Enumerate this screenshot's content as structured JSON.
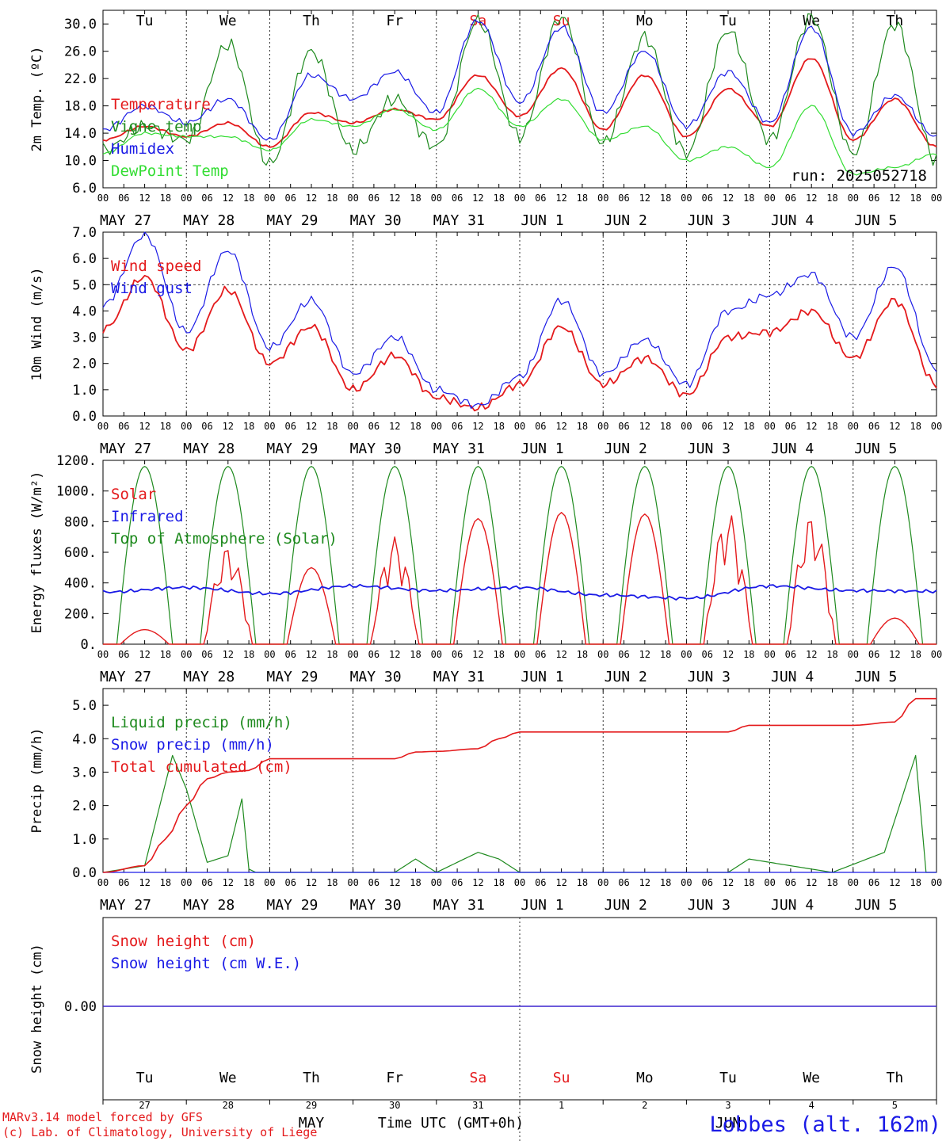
{
  "colors": {
    "red": "#e41a1c",
    "green": "#1e8a1e",
    "blue": "#1a1ae6",
    "lightgreen": "#33dd33",
    "axis": "#000000"
  },
  "day_labels": [
    "Tu",
    "We",
    "Th",
    "Fr",
    "Sa",
    "Su",
    "Mo",
    "Tu",
    "We",
    "Th"
  ],
  "weekend_day_indices": [
    4,
    5
  ],
  "date_labels": [
    "MAY 27",
    "MAY 28",
    "MAY 29",
    "MAY 30",
    "MAY 31",
    "JUN  1",
    "JUN  2",
    "JUN  3",
    "JUN  4",
    "JUN  5"
  ],
  "hour_labels": [
    "00",
    "06",
    "12",
    "18"
  ],
  "bottom_axis": {
    "day_numbers": [
      "27",
      "28",
      "29",
      "30",
      "31",
      "1",
      "2",
      "3",
      "4",
      "5"
    ],
    "month_may": "MAY",
    "month_jun": "JUN",
    "xlabel": "Time UTC (GMT+0h)"
  },
  "footer": {
    "model_line": "MARv3.14 model forced by GFS",
    "lab_line": "(c) Lab. of Climatology, University of Liege",
    "station": "Lobbes (alt. 162m)"
  },
  "chart_data": [
    {
      "id": "temperature",
      "type": "line",
      "ylabel": "2m Temp. (ºC)",
      "ylim": [
        6,
        32
      ],
      "yticks": [
        6,
        10,
        14,
        18,
        22,
        26,
        30
      ],
      "ytick_labels": [
        "6.0",
        "10.0",
        "14.0",
        "18.0",
        "22.0",
        "26.0",
        "30.0"
      ],
      "x_hours": [
        0,
        12,
        24,
        36,
        48,
        60,
        72,
        84,
        96,
        108,
        120,
        132,
        144,
        156,
        168,
        180,
        192,
        204,
        216,
        228,
        240
      ],
      "annotation": "run: 2025052718",
      "series": [
        {
          "name": "Temperature",
          "color": "red",
          "values": [
            13,
            15,
            13.5,
            15.5,
            12,
            17,
            15.5,
            17.5,
            16,
            22.5,
            16.5,
            23.5,
            14.5,
            22.5,
            13.5,
            20.5,
            15,
            25,
            13,
            19,
            12
          ]
        },
        {
          "name": "Vigne temp",
          "color": "green",
          "values": [
            11.5,
            15,
            13,
            27,
            9.5,
            26,
            11.5,
            19,
            12,
            30.5,
            13.5,
            31,
            12.5,
            28,
            11,
            29,
            13,
            31,
            11,
            30,
            10
          ]
        },
        {
          "name": "Humidex",
          "color": "blue",
          "values": [
            14.5,
            18,
            15.5,
            19,
            13,
            22.5,
            19,
            23,
            17,
            30.5,
            18.5,
            29.5,
            17,
            26,
            15,
            23,
            15.5,
            29.5,
            14,
            19.5,
            13.5
          ]
        },
        {
          "name": "DewPoint Temp",
          "color": "lightgreen",
          "values": [
            11,
            14,
            13.5,
            13.5,
            11.5,
            16,
            15,
            17.5,
            14.5,
            20.5,
            15,
            19,
            13,
            15,
            10,
            12,
            9,
            18,
            8,
            9,
            11
          ]
        }
      ]
    },
    {
      "id": "wind",
      "type": "line",
      "ylabel": "10m Wind (m/s)",
      "ylim": [
        0,
        7
      ],
      "yticks": [
        0,
        1,
        2,
        3,
        4,
        5,
        6,
        7
      ],
      "ytick_labels": [
        "0.0",
        "1.0",
        "2.0",
        "3.0",
        "4.0",
        "5.0",
        "6.0",
        "7.0"
      ],
      "hline": 5,
      "x_hours": [
        0,
        12,
        24,
        36,
        48,
        60,
        72,
        84,
        96,
        108,
        120,
        132,
        144,
        156,
        168,
        180,
        192,
        204,
        216,
        228,
        240
      ],
      "series": [
        {
          "name": "Wind speed",
          "color": "red",
          "values": [
            3.3,
            5.3,
            2.5,
            4.8,
            2,
            3.4,
            1,
            2.3,
            0.7,
            0.3,
            1.2,
            3.4,
            1.2,
            2.2,
            0.8,
            3,
            3.2,
            4,
            2.2,
            4.4,
            1.2
          ]
        },
        {
          "name": "Wind gust",
          "color": "blue",
          "values": [
            4.2,
            6.9,
            3.2,
            6.3,
            2.6,
            4.4,
            1.6,
            3,
            1,
            0.4,
            1.5,
            4.4,
            1.6,
            2.9,
            1.2,
            4,
            4.6,
            5.4,
            3,
            5.7,
            1.8
          ]
        }
      ]
    },
    {
      "id": "energy",
      "type": "line",
      "ylabel": "Energy fluxes (W/m²)",
      "ylim": [
        0,
        1200
      ],
      "yticks": [
        0,
        200,
        400,
        600,
        800,
        1000,
        1200
      ],
      "ytick_labels": [
        "0.",
        "200.",
        "400.",
        "600.",
        "800.",
        "1000.",
        "1200."
      ],
      "series": [
        {
          "name": "Solar",
          "color": "red",
          "day_peaks": [
            95,
            640,
            500,
            700,
            820,
            860,
            850,
            860,
            840,
            170
          ]
        },
        {
          "name": "Infrared",
          "color": "blue",
          "x_hours": [
            0,
            24,
            48,
            72,
            96,
            120,
            144,
            168,
            192,
            216,
            240
          ],
          "values": [
            340,
            370,
            330,
            380,
            350,
            370,
            320,
            300,
            380,
            350,
            345
          ]
        },
        {
          "name": "Top of Atmosphere (Solar)",
          "color": "green",
          "day_peak": 1160
        }
      ]
    },
    {
      "id": "precip",
      "type": "line",
      "ylabel": "Precip (mm/h)",
      "ylim": [
        0,
        5.5
      ],
      "yticks": [
        0,
        1,
        2,
        3,
        4,
        5
      ],
      "ytick_labels": [
        "0.0",
        "1.0",
        "2.0",
        "3.0",
        "4.0",
        "5.0"
      ],
      "series": [
        {
          "name": "Liquid precip (mm/h)",
          "color": "green",
          "x_hours": [
            0,
            12,
            20,
            24,
            30,
            36,
            40,
            42,
            44,
            48,
            84,
            90,
            96,
            108,
            114,
            120,
            180,
            186,
            210,
            225,
            234,
            237,
            240
          ],
          "values": [
            0,
            0.2,
            3.5,
            2.5,
            0.3,
            0.5,
            2.2,
            0.1,
            0,
            0,
            0,
            0.4,
            0,
            0.6,
            0.4,
            0,
            0,
            0.4,
            0,
            0.6,
            3.5,
            0,
            0
          ]
        },
        {
          "name": "Snow precip (mm/h)",
          "color": "blue",
          "x_hours": [
            0,
            240
          ],
          "values": [
            0,
            0
          ]
        },
        {
          "name": "Total cumulated (cm)",
          "color": "red",
          "x_hours": [
            0,
            12,
            18,
            24,
            30,
            36,
            42,
            48,
            84,
            90,
            96,
            108,
            114,
            120,
            180,
            186,
            216,
            228,
            234,
            240
          ],
          "values": [
            0,
            0.2,
            1,
            2,
            2.8,
            3,
            3.05,
            3.4,
            3.4,
            3.6,
            3.62,
            3.7,
            4,
            4.2,
            4.2,
            4.4,
            4.4,
            4.5,
            5.2,
            5.2
          ]
        }
      ]
    },
    {
      "id": "snow",
      "type": "line",
      "ylabel": "Snow height (cm)",
      "yticks": [
        0
      ],
      "ytick_labels": [
        "0.00"
      ],
      "series": [
        {
          "name": "Snow height (cm)",
          "color": "red",
          "values": [
            0,
            0
          ]
        },
        {
          "name": "Snow height (cm W.E.)",
          "color": "blue",
          "values": [
            0,
            0
          ]
        }
      ]
    }
  ]
}
